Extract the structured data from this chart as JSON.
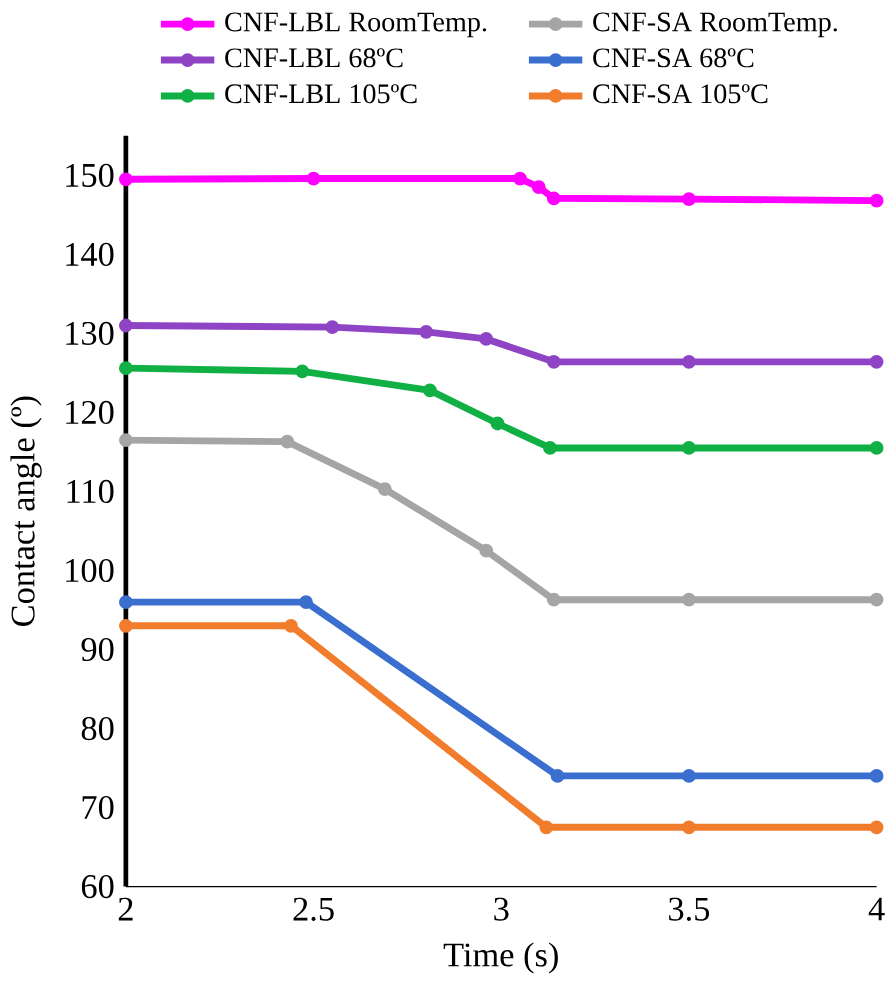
{
  "chart_data": {
    "type": "line",
    "xlabel": "Time (s)",
    "ylabel": "Contact angle (º)",
    "xlim": [
      2,
      4
    ],
    "ylim": [
      60,
      155
    ],
    "xticks": [
      2,
      2.5,
      3,
      3.5,
      4
    ],
    "yticks": [
      60,
      70,
      80,
      90,
      100,
      110,
      120,
      130,
      140,
      150
    ],
    "legend": "top",
    "marker": "circle",
    "grid": false,
    "series": [
      {
        "name": "CNF-LBL RoomTemp.",
        "color": "#ff00ff",
        "x": [
          2,
          2.5,
          3.05,
          3.1,
          3.14,
          3.5,
          4
        ],
        "values": [
          149.5,
          149.6,
          149.6,
          148.5,
          147.1,
          147,
          146.8
        ]
      },
      {
        "name": "CNF-SA RoomTemp.",
        "color": "#a5a5a5",
        "x": [
          2,
          2.43,
          2.69,
          2.96,
          3.14,
          3.5,
          4
        ],
        "values": [
          116.5,
          116.3,
          110.3,
          102.5,
          96.3,
          96.3,
          96.3
        ]
      },
      {
        "name": "CNF-LBL 68ºC",
        "color": "#8e44c4",
        "x": [
          2,
          2.55,
          2.8,
          2.96,
          3.14,
          3.5,
          4
        ],
        "values": [
          131,
          130.8,
          130.2,
          129.3,
          126.4,
          126.4,
          126.4
        ]
      },
      {
        "name": "CNF-SA 68ºC",
        "color": "#3a6fd0",
        "x": [
          2,
          2.48,
          3.15,
          3.5,
          4
        ],
        "values": [
          96,
          96,
          74,
          74,
          74
        ]
      },
      {
        "name": "CNF-LBL 105ºC",
        "color": "#10b044",
        "x": [
          2,
          2.47,
          2.81,
          2.99,
          3.13,
          3.5,
          4
        ],
        "values": [
          125.6,
          125.2,
          122.8,
          118.6,
          115.5,
          115.5,
          115.5
        ]
      },
      {
        "name": "CNF-SA 105ºC",
        "color": "#f07c2c",
        "x": [
          2,
          2.44,
          3.12,
          3.5,
          4
        ],
        "values": [
          93,
          93,
          67.5,
          67.5,
          67.5
        ]
      }
    ]
  }
}
